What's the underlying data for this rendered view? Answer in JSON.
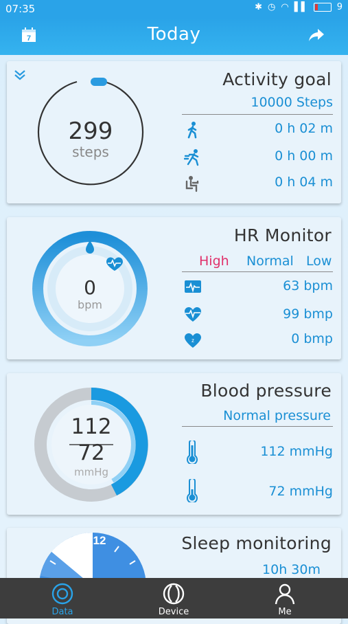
{
  "status": {
    "time": "07:35",
    "battery": "9"
  },
  "header": {
    "title": "Today",
    "calendar_day": "7"
  },
  "activity": {
    "steps": "299",
    "steps_label": "steps",
    "title": "Activity goal",
    "goal": "10000 Steps",
    "rows": [
      {
        "icon": "walk-icon",
        "value": "0 h 02 m"
      },
      {
        "icon": "run-icon",
        "value": "0 h 00 m"
      },
      {
        "icon": "sit-icon",
        "value": "0 h 04 m"
      }
    ]
  },
  "hr": {
    "value": "0",
    "unit": "bpm",
    "title": "HR Monitor",
    "levels": {
      "high": "High",
      "normal": "Normal",
      "low": "Low"
    },
    "rows": [
      {
        "icon": "pulse-icon",
        "value": "63 bpm"
      },
      {
        "icon": "heart-icon",
        "value": "99 bmp"
      },
      {
        "icon": "sleep-heart-icon",
        "value": "0 bmp"
      }
    ]
  },
  "bp": {
    "systolic": "112",
    "diastolic": "72",
    "unit": "mmHg",
    "title": "Blood pressure",
    "status": "Normal pressure",
    "rows": [
      {
        "icon": "thermometer-high-icon",
        "value": "112 mmHg"
      },
      {
        "icon": "thermometer-low-icon",
        "value": "72 mmHg"
      }
    ]
  },
  "sleep": {
    "title": "Sleep monitoring",
    "clock_label": "12",
    "duration": "10h 30m"
  },
  "nav": {
    "data": "Data",
    "device": "Device",
    "me": "Me"
  },
  "colors": {
    "primary": "#2aa3e8",
    "accent_text": "#1a8fd4",
    "high": "#e0306b",
    "nav_bg": "#3d3d3d"
  }
}
